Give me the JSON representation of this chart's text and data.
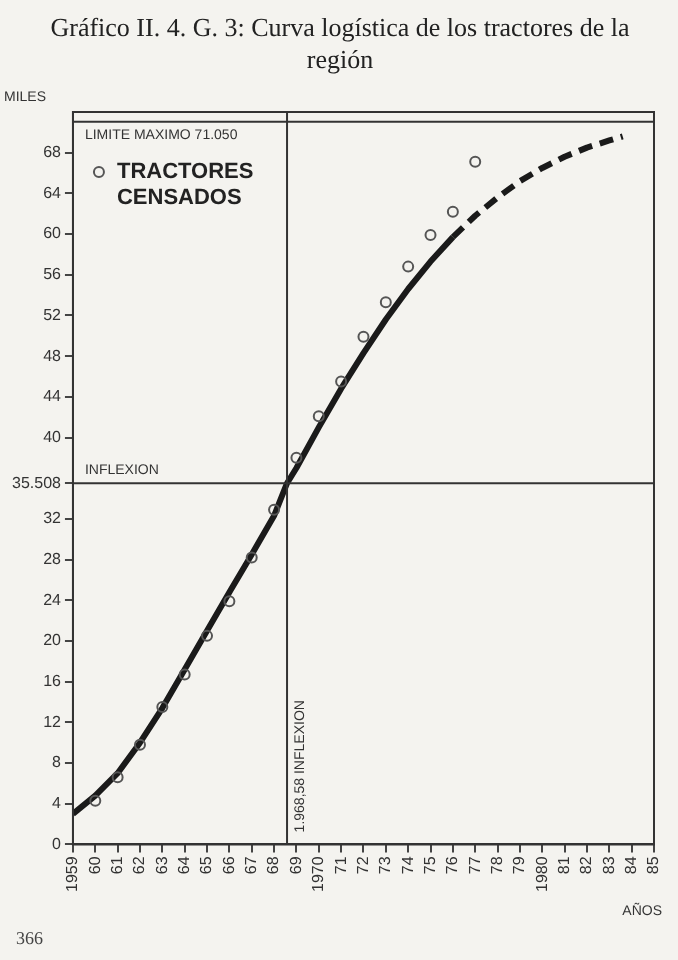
{
  "chart_data": {
    "type": "line",
    "title": "Gráfico II. 4. G. 3: Curva logística de los tractores de la región",
    "xlabel": "AÑOS",
    "ylabel": "MILES",
    "xlim": [
      1959,
      1985
    ],
    "xticks": [
      1959,
      {
        "value": 1960,
        "label": "60"
      },
      {
        "value": 1961,
        "label": "61"
      },
      {
        "value": 1962,
        "label": "62"
      },
      {
        "value": 1963,
        "label": "63"
      },
      {
        "value": 1964,
        "label": "64"
      },
      {
        "value": 1965,
        "label": "65"
      },
      {
        "value": 1966,
        "label": "66"
      },
      {
        "value": 1967,
        "label": "67"
      },
      {
        "value": 1968,
        "label": "68"
      },
      {
        "value": 1969,
        "label": "69"
      },
      1970,
      {
        "value": 1971,
        "label": "71"
      },
      {
        "value": 1972,
        "label": "72"
      },
      {
        "value": 1973,
        "label": "73"
      },
      {
        "value": 1974,
        "label": "74"
      },
      {
        "value": 1975,
        "label": "75"
      },
      {
        "value": 1976,
        "label": "76"
      },
      {
        "value": 1977,
        "label": "77"
      },
      {
        "value": 1978,
        "label": "78"
      },
      {
        "value": 1979,
        "label": "79"
      },
      1980,
      {
        "value": 1981,
        "label": "81"
      },
      {
        "value": 1982,
        "label": "82"
      },
      {
        "value": 1983,
        "label": "83"
      },
      {
        "value": 1984,
        "label": "84"
      },
      {
        "value": 1985,
        "label": "85"
      }
    ],
    "ylim": [
      0,
      72
    ],
    "yticks": [
      0,
      4,
      8,
      12,
      16,
      20,
      24,
      28,
      32,
      {
        "value": 35.508,
        "label": "35.508"
      },
      40,
      44,
      48,
      52,
      56,
      60,
      64,
      68
    ],
    "grid": false,
    "legend": "top left",
    "series": [
      {
        "name": "TRACTORES CENSADOS",
        "type": "scatter",
        "marker": "circle",
        "color": "#555555",
        "x": [
          1960,
          1961,
          1962,
          1963,
          1964,
          1965,
          1966,
          1967,
          1968,
          1969,
          1970,
          1971,
          1972,
          1973,
          1974,
          1975,
          1976,
          1977
        ],
        "values": [
          4.3,
          6.6,
          9.8,
          13.5,
          16.7,
          20.5,
          23.9,
          28.2,
          32.9,
          38.0,
          42.1,
          45.5,
          49.9,
          53.3,
          56.8,
          59.9,
          62.2,
          67.1
        ]
      },
      {
        "type": "line",
        "line_style": "solid",
        "color": "#1a1a1a",
        "x": [
          1959,
          1960,
          1961,
          1962,
          1963,
          1964,
          1965,
          1966,
          1967,
          1968,
          1968.58,
          1969,
          1970,
          1971,
          1972,
          1973,
          1974,
          1975,
          1976
        ],
        "values": [
          3.0,
          4.8,
          7.0,
          10.0,
          13.4,
          17.2,
          21.0,
          24.8,
          28.5,
          32.3,
          35.508,
          37.0,
          41.0,
          44.8,
          48.3,
          51.6,
          54.6,
          57.3,
          59.7
        ]
      },
      {
        "type": "line",
        "line_style": "dashed",
        "color": "#1a1a1a",
        "x": [
          1976,
          1977,
          1978,
          1979,
          1980,
          1981,
          1982,
          1983,
          1983.6
        ],
        "values": [
          59.7,
          61.8,
          63.6,
          65.2,
          66.5,
          67.6,
          68.5,
          69.2,
          69.6
        ]
      }
    ],
    "ref_lines": [
      {
        "axis": "y",
        "value": 71.05,
        "label": "LIMITE MAXIMO 71.050",
        "color": "#333333"
      },
      {
        "axis": "y",
        "value": 35.508,
        "label": "INFLEXION",
        "color": "#333333"
      },
      {
        "axis": "x",
        "value": 1968.58,
        "label": "1.968,58 INFLEXION",
        "color": "#333333"
      }
    ],
    "annotations": [
      "366"
    ]
  }
}
